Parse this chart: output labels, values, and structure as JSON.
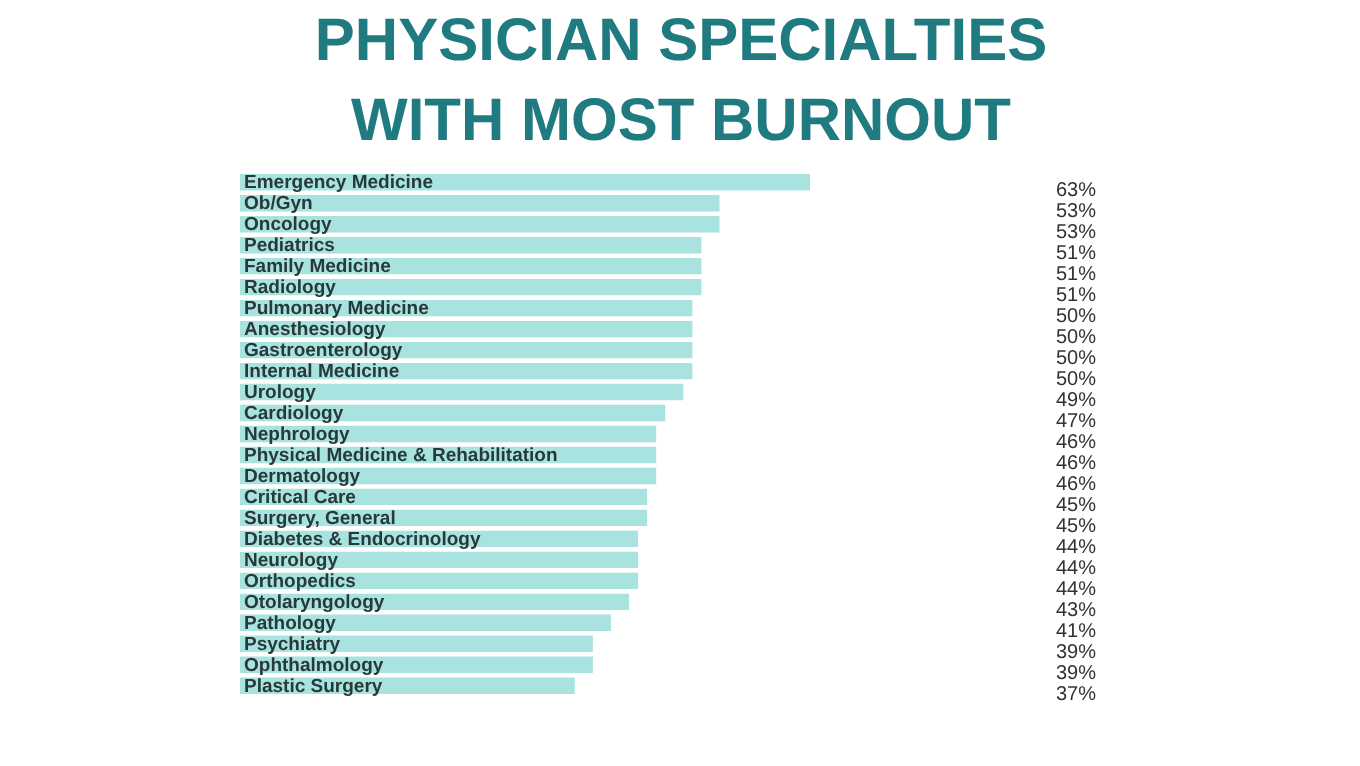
{
  "chart_data": {
    "type": "bar",
    "orientation": "horizontal",
    "title": "PHYSICIAN SPECIALTIES\nWITH MOST BURNOUT",
    "categories": [
      "Emergency Medicine",
      "Ob/Gyn",
      "Oncology",
      "Pediatrics",
      "Family Medicine",
      "Radiology",
      "Pulmonary Medicine",
      "Anesthesiology",
      "Gastroenterology",
      "Internal Medicine",
      "Urology",
      "Cardiology",
      "Nephrology",
      "Physical Medicine & Rehabilitation",
      "Dermatology",
      "Critical Care",
      "Surgery, General",
      "Diabetes & Endocrinology",
      "Neurology",
      "Orthopedics",
      "Otolaryngology",
      "Pathology",
      "Psychiatry",
      "Ophthalmology",
      "Plastic Surgery"
    ],
    "values": [
      63,
      53,
      53,
      51,
      51,
      51,
      50,
      50,
      50,
      50,
      49,
      47,
      46,
      46,
      46,
      45,
      45,
      44,
      44,
      44,
      43,
      41,
      39,
      39,
      37
    ],
    "value_labels": [
      "63%",
      "53%",
      "53%",
      "51%",
      "51%",
      "51%",
      "50%",
      "50%",
      "50%",
      "50%",
      "49%",
      "47%",
      "46%",
      "46%",
      "46%",
      "45%",
      "45%",
      "44%",
      "44%",
      "44%",
      "43%",
      "41%",
      "39%",
      "39%",
      "37%"
    ],
    "color": "#a9e3df"
  }
}
